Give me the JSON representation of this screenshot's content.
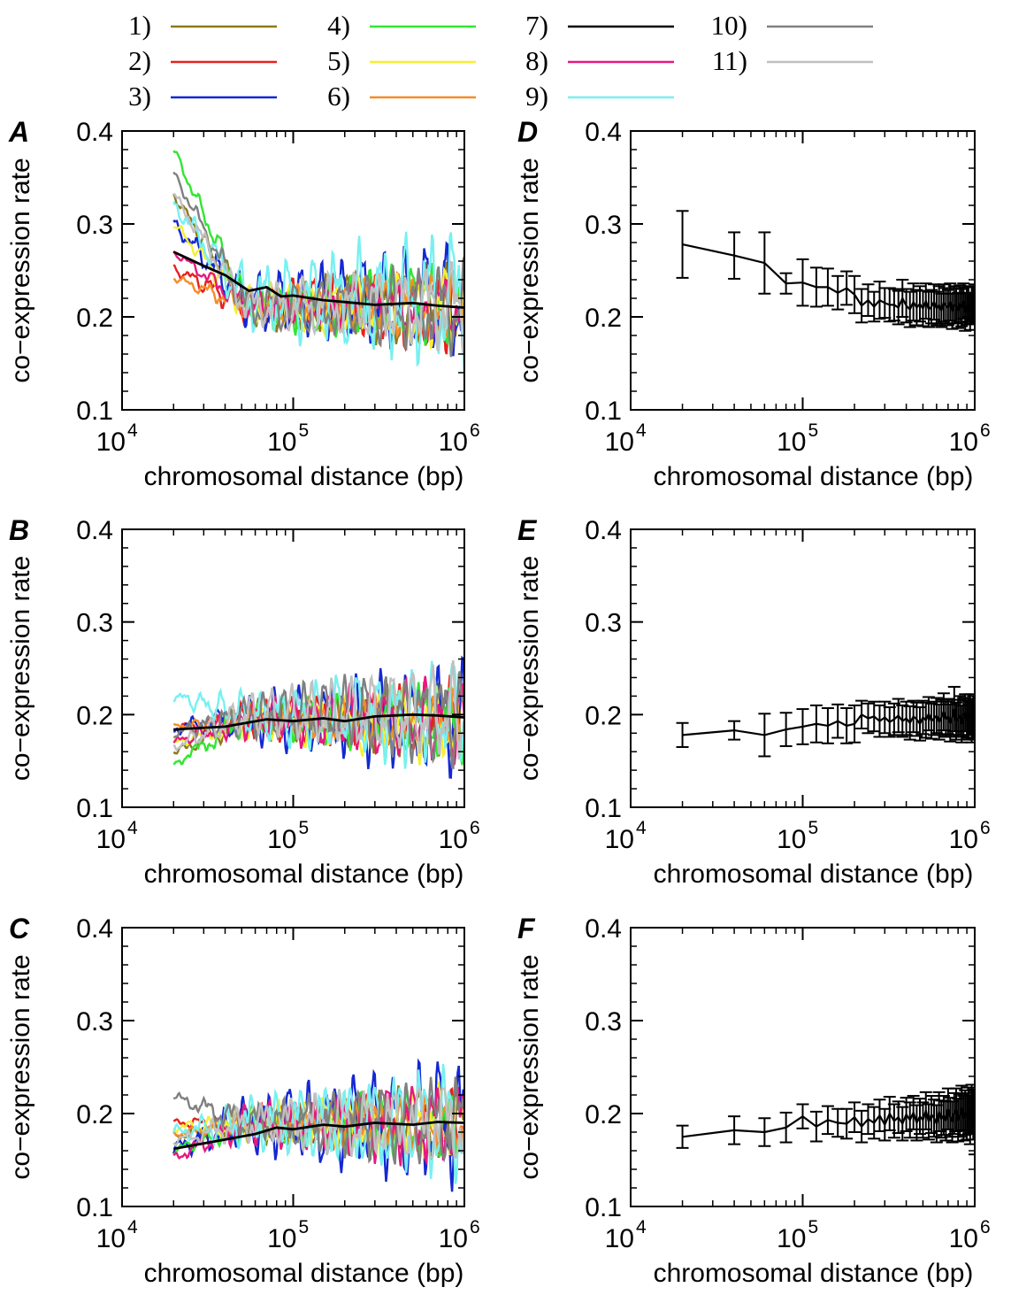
{
  "legend": {
    "entries": [
      {
        "label": "1)",
        "color": "#8B7A1A"
      },
      {
        "label": "2)",
        "color": "#E8201E"
      },
      {
        "label": "3)",
        "color": "#1428D2"
      },
      {
        "label": "4)",
        "color": "#32E632"
      },
      {
        "label": "5)",
        "color": "#F5F032"
      },
      {
        "label": "6)",
        "color": "#F58C28"
      },
      {
        "label": "7)",
        "color": "#000000"
      },
      {
        "label": "8)",
        "color": "#E6197D"
      },
      {
        "label": "9)",
        "color": "#78F0F0"
      },
      {
        "label": "10)",
        "color": "#808080"
      },
      {
        "label": "11)",
        "color": "#C0C0C0"
      }
    ]
  },
  "chart_data": [
    {
      "panel": "A",
      "type": "line",
      "scale_x": "log",
      "xlabel": "chromosomal distance (bp)",
      "ylabel": "co−expression rate",
      "xlim": [
        10000,
        1000000
      ],
      "ylim": [
        0.1,
        0.4
      ],
      "xticks": [
        {
          "base": "10",
          "exp": "4"
        },
        {
          "base": "10",
          "exp": "5"
        },
        {
          "base": "10",
          "exp": "6"
        }
      ],
      "yticks": [
        "0.1",
        "0.2",
        "0.3",
        "0.4"
      ],
      "mean_series": 7,
      "series": [
        {
          "start": 0.332,
          "mean": 0.212,
          "amp": 0.04,
          "seed": 1,
          "color": "#8B7A1A"
        },
        {
          "start": 0.252,
          "mean": 0.212,
          "amp": 0.04,
          "seed": 2,
          "color": "#E8201E"
        },
        {
          "start": 0.3,
          "mean": 0.215,
          "amp": 0.055,
          "seed": 3,
          "color": "#1428D2"
        },
        {
          "start": 0.38,
          "mean": 0.212,
          "amp": 0.04,
          "seed": 4,
          "color": "#32E632"
        },
        {
          "start": 0.3,
          "mean": 0.212,
          "amp": 0.04,
          "seed": 5,
          "color": "#F5F032"
        },
        {
          "start": 0.242,
          "mean": 0.212,
          "amp": 0.03,
          "seed": 6,
          "color": "#F58C28"
        },
        {
          "start": 0.27,
          "mean": 0.212,
          "amp": 0.03,
          "seed": 7,
          "color": "#E6197D"
        },
        {
          "start": 0.322,
          "mean": 0.22,
          "amp": 0.065,
          "seed": 8,
          "color": "#78F0F0"
        },
        {
          "start": 0.355,
          "mean": 0.21,
          "amp": 0.04,
          "seed": 9,
          "color": "#808080"
        },
        {
          "start": 0.332,
          "mean": 0.212,
          "amp": 0.04,
          "seed": 10,
          "color": "#C0C0C0"
        }
      ],
      "mean_line": {
        "x": [
          20000,
          30000,
          40000,
          55000,
          70000,
          85000,
          100000,
          150000,
          200000,
          300000,
          500000,
          700000,
          1000000
        ],
        "y": [
          0.27,
          0.255,
          0.245,
          0.228,
          0.232,
          0.222,
          0.223,
          0.218,
          0.216,
          0.213,
          0.215,
          0.212,
          0.21
        ],
        "color": "#000000"
      }
    },
    {
      "panel": "B",
      "type": "line",
      "scale_x": "log",
      "xlabel": "chromosomal distance (bp)",
      "ylabel": "co−expression rate",
      "xlim": [
        10000,
        1000000
      ],
      "ylim": [
        0.1,
        0.4
      ],
      "xticks": [
        {
          "base": "10",
          "exp": "4"
        },
        {
          "base": "10",
          "exp": "5"
        },
        {
          "base": "10",
          "exp": "6"
        }
      ],
      "yticks": [
        "0.1",
        "0.2",
        "0.3",
        "0.4"
      ],
      "mean_series": 7,
      "series": [
        {
          "start": 0.158,
          "mean": 0.195,
          "amp": 0.035,
          "seed": 11,
          "color": "#8B7A1A"
        },
        {
          "start": 0.185,
          "mean": 0.195,
          "amp": 0.035,
          "seed": 12,
          "color": "#E8201E"
        },
        {
          "start": 0.185,
          "mean": 0.195,
          "amp": 0.05,
          "seed": 13,
          "color": "#1428D2"
        },
        {
          "start": 0.147,
          "mean": 0.195,
          "amp": 0.035,
          "seed": 14,
          "color": "#32E632"
        },
        {
          "start": 0.17,
          "mean": 0.19,
          "amp": 0.035,
          "seed": 15,
          "color": "#F5F032"
        },
        {
          "start": 0.187,
          "mean": 0.195,
          "amp": 0.025,
          "seed": 16,
          "color": "#F58C28"
        },
        {
          "start": 0.17,
          "mean": 0.195,
          "amp": 0.04,
          "seed": 17,
          "color": "#E6197D"
        },
        {
          "start": 0.22,
          "mean": 0.2,
          "amp": 0.05,
          "seed": 18,
          "color": "#78F0F0"
        },
        {
          "start": 0.18,
          "mean": 0.2,
          "amp": 0.045,
          "seed": 19,
          "color": "#808080"
        },
        {
          "start": 0.165,
          "mean": 0.2,
          "amp": 0.045,
          "seed": 20,
          "color": "#C0C0C0"
        }
      ],
      "mean_line": {
        "x": [
          20000,
          40000,
          70000,
          100000,
          150000,
          200000,
          300000,
          500000,
          700000,
          1000000
        ],
        "y": [
          0.184,
          0.187,
          0.195,
          0.193,
          0.196,
          0.193,
          0.198,
          0.2,
          0.199,
          0.197
        ],
        "color": "#000000"
      }
    },
    {
      "panel": "C",
      "type": "line",
      "scale_x": "log",
      "xlabel": "chromosomal distance (bp)",
      "ylabel": "co−expression rate",
      "xlim": [
        10000,
        1000000
      ],
      "ylim": [
        0.1,
        0.4
      ],
      "xticks": [
        {
          "base": "10",
          "exp": "4"
        },
        {
          "base": "10",
          "exp": "5"
        },
        {
          "base": "10",
          "exp": "6"
        }
      ],
      "yticks": [
        "0.1",
        "0.2",
        "0.3",
        "0.4"
      ],
      "mean_series": 7,
      "series": [
        {
          "start": 0.175,
          "mean": 0.19,
          "amp": 0.035,
          "seed": 21,
          "color": "#8B7A1A"
        },
        {
          "start": 0.19,
          "mean": 0.19,
          "amp": 0.03,
          "seed": 22,
          "color": "#E8201E"
        },
        {
          "start": 0.162,
          "mean": 0.19,
          "amp": 0.06,
          "seed": 23,
          "color": "#1428D2"
        },
        {
          "start": 0.16,
          "mean": 0.188,
          "amp": 0.035,
          "seed": 24,
          "color": "#32E632"
        },
        {
          "start": 0.185,
          "mean": 0.19,
          "amp": 0.035,
          "seed": 25,
          "color": "#F5F032"
        },
        {
          "start": 0.178,
          "mean": 0.19,
          "amp": 0.025,
          "seed": 26,
          "color": "#F58C28"
        },
        {
          "start": 0.152,
          "mean": 0.19,
          "amp": 0.04,
          "seed": 27,
          "color": "#E6197D"
        },
        {
          "start": 0.18,
          "mean": 0.19,
          "amp": 0.055,
          "seed": 28,
          "color": "#78F0F0"
        },
        {
          "start": 0.218,
          "mean": 0.19,
          "amp": 0.04,
          "seed": 29,
          "color": "#808080"
        },
        {
          "start": 0.17,
          "mean": 0.19,
          "amp": 0.04,
          "seed": 30,
          "color": "#C0C0C0"
        }
      ],
      "mean_line": {
        "x": [
          20000,
          40000,
          60000,
          80000,
          100000,
          150000,
          200000,
          300000,
          500000,
          700000,
          1000000
        ],
        "y": [
          0.162,
          0.172,
          0.178,
          0.185,
          0.183,
          0.188,
          0.186,
          0.19,
          0.188,
          0.191,
          0.19
        ],
        "color": "#000000"
      }
    },
    {
      "panel": "D",
      "type": "line_errorbar",
      "scale_x": "log",
      "xlabel": "chromosomal distance (bp)",
      "ylabel": "co−expression rate",
      "xlim": [
        10000,
        1000000
      ],
      "ylim": [
        0.1,
        0.4
      ],
      "xticks": [
        {
          "base": "10",
          "exp": "4"
        },
        {
          "base": "10",
          "exp": "5"
        },
        {
          "base": "10",
          "exp": "6"
        }
      ],
      "yticks": [
        "0.1",
        "0.2",
        "0.3",
        "0.4"
      ],
      "x": [
        20000,
        40000,
        60000,
        80000,
        100000,
        120000,
        140000,
        160000,
        180000,
        200000,
        220000,
        240000,
        260000,
        280000,
        300000,
        320000,
        340000,
        360000,
        380000,
        400000,
        420000,
        440000,
        460000,
        480000,
        500000,
        520000,
        540000,
        560000,
        580000,
        600000,
        620000,
        640000,
        660000,
        680000,
        700000,
        720000,
        740000,
        760000,
        780000,
        800000,
        820000,
        840000,
        860000,
        880000,
        900000,
        920000,
        940000,
        960000,
        980000,
        1000000
      ],
      "y": [
        0.278,
        0.266,
        0.258,
        0.236,
        0.237,
        0.232,
        0.232,
        0.226,
        0.231,
        0.224,
        0.212,
        0.218,
        0.211,
        0.218,
        0.215,
        0.213,
        0.213,
        0.21,
        0.22,
        0.212,
        0.208,
        0.216,
        0.21,
        0.214,
        0.209,
        0.217,
        0.208,
        0.211,
        0.216,
        0.209,
        0.213,
        0.207,
        0.215,
        0.212,
        0.21,
        0.216,
        0.206,
        0.213,
        0.212,
        0.207,
        0.214,
        0.21,
        0.217,
        0.205,
        0.212,
        0.214,
        0.206,
        0.213,
        0.212,
        0.215
      ],
      "err": [
        0.036,
        0.025,
        0.033,
        0.011,
        0.025,
        0.021,
        0.02,
        0.018,
        0.018,
        0.02,
        0.018,
        0.017,
        0.016,
        0.02,
        0.016,
        0.018,
        0.017,
        0.018,
        0.02,
        0.018,
        0.019,
        0.02,
        0.019,
        0.019,
        0.019,
        0.019,
        0.019,
        0.018,
        0.019,
        0.018,
        0.02,
        0.018,
        0.02,
        0.019,
        0.019,
        0.02,
        0.019,
        0.02,
        0.019,
        0.019,
        0.02,
        0.02,
        0.019,
        0.02,
        0.02,
        0.019,
        0.02,
        0.02,
        0.02,
        0.02
      ]
    },
    {
      "panel": "E",
      "type": "line_errorbar",
      "scale_x": "log",
      "xlabel": "chromosomal distance (bp)",
      "ylabel": "co−expression rate",
      "xlim": [
        10000,
        1000000
      ],
      "ylim": [
        0.1,
        0.4
      ],
      "xticks": [
        {
          "base": "10",
          "exp": "4"
        },
        {
          "base": "10",
          "exp": "5"
        },
        {
          "base": "10",
          "exp": "6"
        }
      ],
      "yticks": [
        "0.1",
        "0.2",
        "0.3",
        "0.4"
      ],
      "x": [
        20000,
        40000,
        60000,
        80000,
        100000,
        120000,
        140000,
        160000,
        180000,
        200000,
        220000,
        240000,
        260000,
        280000,
        300000,
        320000,
        340000,
        360000,
        380000,
        400000,
        420000,
        440000,
        460000,
        480000,
        500000,
        520000,
        540000,
        560000,
        580000,
        600000,
        620000,
        640000,
        660000,
        680000,
        700000,
        720000,
        740000,
        760000,
        780000,
        800000,
        820000,
        840000,
        860000,
        880000,
        900000,
        920000,
        940000,
        960000,
        980000,
        1000000
      ],
      "y": [
        0.178,
        0.183,
        0.178,
        0.184,
        0.187,
        0.19,
        0.188,
        0.193,
        0.188,
        0.19,
        0.2,
        0.196,
        0.198,
        0.193,
        0.197,
        0.192,
        0.195,
        0.199,
        0.193,
        0.196,
        0.191,
        0.198,
        0.195,
        0.19,
        0.197,
        0.194,
        0.201,
        0.193,
        0.196,
        0.199,
        0.192,
        0.197,
        0.203,
        0.195,
        0.198,
        0.191,
        0.197,
        0.206,
        0.193,
        0.196,
        0.199,
        0.19,
        0.197,
        0.202,
        0.194,
        0.196,
        0.2,
        0.192,
        0.197,
        0.195
      ],
      "err": [
        0.013,
        0.01,
        0.023,
        0.018,
        0.019,
        0.02,
        0.019,
        0.018,
        0.019,
        0.02,
        0.015,
        0.016,
        0.016,
        0.017,
        0.017,
        0.016,
        0.017,
        0.018,
        0.017,
        0.018,
        0.018,
        0.017,
        0.018,
        0.018,
        0.018,
        0.019,
        0.018,
        0.019,
        0.018,
        0.019,
        0.019,
        0.019,
        0.02,
        0.019,
        0.019,
        0.02,
        0.019,
        0.024,
        0.02,
        0.02,
        0.021,
        0.02,
        0.021,
        0.02,
        0.021,
        0.021,
        0.022,
        0.022,
        0.023,
        0.022
      ]
    },
    {
      "panel": "F",
      "type": "line_errorbar",
      "scale_x": "log",
      "xlabel": "chromosomal distance (bp)",
      "ylabel": "co−expression rate",
      "xlim": [
        10000,
        1000000
      ],
      "ylim": [
        0.1,
        0.4
      ],
      "xticks": [
        {
          "base": "10",
          "exp": "4"
        },
        {
          "base": "10",
          "exp": "5"
        },
        {
          "base": "10",
          "exp": "6"
        }
      ],
      "yticks": [
        "0.1",
        "0.2",
        "0.3",
        "0.4"
      ],
      "x": [
        20000,
        40000,
        60000,
        80000,
        100000,
        120000,
        140000,
        160000,
        180000,
        200000,
        220000,
        240000,
        260000,
        280000,
        300000,
        320000,
        340000,
        360000,
        380000,
        400000,
        420000,
        440000,
        460000,
        480000,
        500000,
        520000,
        540000,
        560000,
        580000,
        600000,
        620000,
        640000,
        660000,
        680000,
        700000,
        720000,
        740000,
        760000,
        780000,
        800000,
        820000,
        840000,
        860000,
        880000,
        900000,
        920000,
        940000,
        960000,
        980000,
        1000000
      ],
      "y": [
        0.175,
        0.182,
        0.18,
        0.185,
        0.197,
        0.186,
        0.193,
        0.19,
        0.189,
        0.196,
        0.186,
        0.194,
        0.19,
        0.198,
        0.188,
        0.2,
        0.192,
        0.196,
        0.189,
        0.199,
        0.193,
        0.201,
        0.19,
        0.197,
        0.193,
        0.203,
        0.191,
        0.199,
        0.195,
        0.189,
        0.202,
        0.194,
        0.198,
        0.192,
        0.205,
        0.196,
        0.191,
        0.2,
        0.204,
        0.193,
        0.198,
        0.206,
        0.195,
        0.201,
        0.197,
        0.203,
        0.193,
        0.205,
        0.199,
        0.19
      ],
      "err": [
        0.012,
        0.015,
        0.015,
        0.016,
        0.013,
        0.016,
        0.015,
        0.015,
        0.016,
        0.016,
        0.017,
        0.016,
        0.017,
        0.017,
        0.017,
        0.018,
        0.018,
        0.017,
        0.018,
        0.018,
        0.019,
        0.018,
        0.019,
        0.019,
        0.019,
        0.02,
        0.019,
        0.02,
        0.02,
        0.02,
        0.021,
        0.02,
        0.021,
        0.021,
        0.022,
        0.021,
        0.022,
        0.022,
        0.023,
        0.023,
        0.023,
        0.024,
        0.024,
        0.024,
        0.025,
        0.025,
        0.026,
        0.026,
        0.027,
        0.034
      ]
    }
  ]
}
